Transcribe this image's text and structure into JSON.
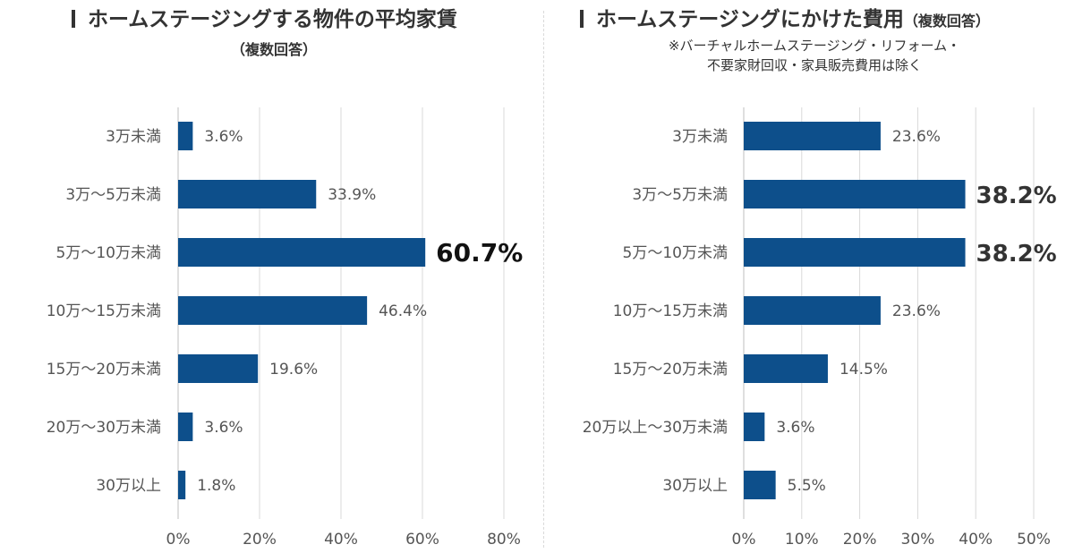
{
  "left": {
    "title": "ホームステージングする物件の平均家賃",
    "subtitle": "（複数回答）"
  },
  "right": {
    "title": "ホームステージングにかけた費用",
    "title_suffix": "（複数回答）",
    "note_line1": "※バーチャルホームステージング・リフォーム・",
    "note_line2": "不要家財回収・家具販売費用は除く"
  },
  "chart_data": [
    {
      "type": "bar",
      "orientation": "horizontal",
      "title": "ホームステージングする物件の平均家賃（複数回答）",
      "categories": [
        "3万未満",
        "3万～5万未満",
        "5万～10万未満",
        "10万～15万未満",
        "15万～20万未満",
        "20万～30万未満",
        "30万以上"
      ],
      "values": [
        3.6,
        33.9,
        60.7,
        46.4,
        19.6,
        3.6,
        1.8
      ],
      "value_labels": [
        "3.6%",
        "33.9%",
        "60.7%",
        "46.4%",
        "19.6%",
        "3.6%",
        "1.8%"
      ],
      "highlight": [
        2
      ],
      "xlim": [
        0,
        80
      ],
      "xticks": [
        0,
        20,
        40,
        60,
        80
      ],
      "xtick_labels": [
        "0%",
        "20%",
        "40%",
        "60%",
        "80%"
      ],
      "bar_color": "#0d4f8b",
      "grid": true,
      "legend": "none"
    },
    {
      "type": "bar",
      "orientation": "horizontal",
      "title": "ホームステージングにかけた費用（複数回答）",
      "categories": [
        "3万未満",
        "3万～5万未満",
        "5万～10万未満",
        "10万～15万未満",
        "15万～20万未満",
        "20万以上～30万未満",
        "30万以上"
      ],
      "values": [
        23.6,
        38.2,
        38.2,
        23.6,
        14.5,
        3.6,
        5.5
      ],
      "value_labels": [
        "23.6%",
        "38.2%",
        "38.2%",
        "23.6%",
        "14.5%",
        "3.6%",
        "5.5%"
      ],
      "highlight": [
        1,
        2
      ],
      "xlim": [
        0,
        50
      ],
      "xticks": [
        0,
        10,
        20,
        30,
        40,
        50
      ],
      "xtick_labels": [
        "0%",
        "10%",
        "20%",
        "30%",
        "40%",
        "50%"
      ],
      "bar_color": "#0d4f8b",
      "grid": true,
      "legend": "none"
    }
  ]
}
